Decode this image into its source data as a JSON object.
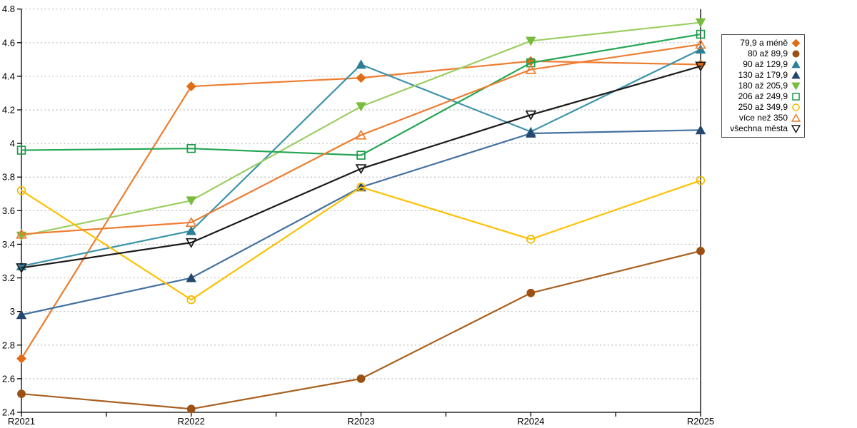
{
  "chart_data": {
    "type": "line",
    "title": "",
    "categories": [
      "R2021",
      "R2022",
      "R2023",
      "R2024",
      "R2025"
    ],
    "series": [
      {
        "name": "79,9 a méně",
        "line_color": "#ED7D31",
        "marker_color": "#E16C15",
        "marker": "diamond",
        "filled": true,
        "values": [
          2.72,
          4.34,
          4.39,
          4.49,
          4.47
        ]
      },
      {
        "name": "80 až 89,9",
        "line_color": "#A9601F",
        "marker_color": "#9C5013",
        "marker": "circle",
        "filled": true,
        "values": [
          2.51,
          2.42,
          2.6,
          3.11,
          3.36
        ]
      },
      {
        "name": "90 až 129,9",
        "line_color": "#3D93AA",
        "marker_color": "#2E7E95",
        "marker": "triangle-up",
        "filled": true,
        "values": [
          3.27,
          3.48,
          4.47,
          4.07,
          4.56
        ]
      },
      {
        "name": "130 až 179,9",
        "line_color": "#4470A0",
        "marker_color": "#25486E",
        "marker": "triangle-up",
        "filled": true,
        "values": [
          2.98,
          3.2,
          3.74,
          4.06,
          4.08
        ]
      },
      {
        "name": "180 až 205,9",
        "line_color": "#9CCE62",
        "marker_color": "#78BC3E",
        "marker": "triangle-down",
        "filled": true,
        "values": [
          3.45,
          3.66,
          4.22,
          4.61,
          4.72
        ]
      },
      {
        "name": "206 až 249,9",
        "line_color": "#24A654",
        "marker_color": "#1C9C4A",
        "marker": "square",
        "filled": false,
        "values": [
          3.96,
          3.97,
          3.93,
          4.48,
          4.65
        ]
      },
      {
        "name": "250 až 349,9",
        "line_color": "#FFC000",
        "marker_color": "#F5B800",
        "marker": "circle",
        "filled": false,
        "values": [
          3.72,
          3.07,
          3.74,
          3.43,
          3.78
        ]
      },
      {
        "name": "více než 350",
        "line_color": "#ED7D31",
        "marker_color": "#ED7D31",
        "marker": "triangle-up",
        "filled": false,
        "values": [
          3.46,
          3.53,
          4.05,
          4.44,
          4.59
        ]
      },
      {
        "name": "všechna města",
        "line_color": "#1A1A1A",
        "marker_color": "#1A1A1A",
        "marker": "triangle-down",
        "filled": false,
        "values": [
          3.26,
          3.41,
          3.85,
          4.17,
          4.46
        ]
      }
    ],
    "xlabel": "",
    "ylabel": "",
    "ylim": [
      2.4,
      4.8
    ],
    "ytick_step": 0.2,
    "y_tick_labels": [
      "2.4",
      "2.6",
      "2.8",
      "3",
      "3.2",
      "3.4",
      "3.6",
      "3.8",
      "4",
      "4.2",
      "4.4",
      "4.6",
      "4.8"
    ],
    "x_tick_labels": [
      "R2021",
      "R2022",
      "R2023",
      "R2024",
      "R2025"
    ],
    "grid": "horizontal-dashed",
    "grid_color": "#bdbdbd",
    "axis_color": "#000000",
    "legend_position": "right-outside",
    "legend_border_color": "#4d4d4d"
  }
}
